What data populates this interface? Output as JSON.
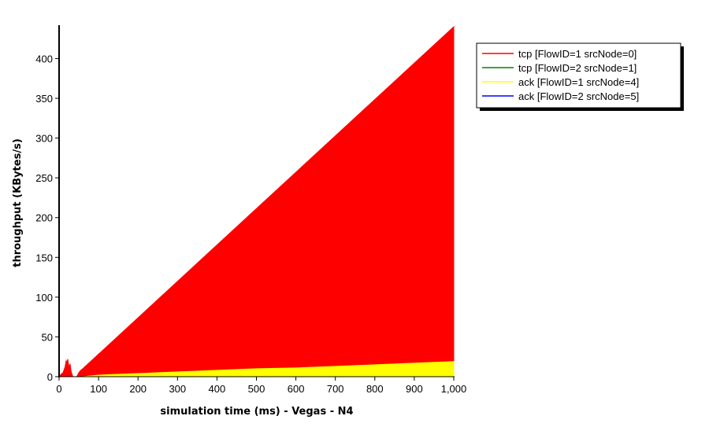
{
  "chart_data": {
    "type": "area",
    "xlabel": "simulation time (ms) - Vegas - N4",
    "ylabel": "throughput (KBytes/s)",
    "xlim": [
      0,
      1000
    ],
    "ylim": [
      0,
      440
    ],
    "x_ticks": [
      0,
      100,
      200,
      300,
      400,
      500,
      600,
      700,
      800,
      900,
      1000
    ],
    "x_tick_labels": [
      "0",
      "100",
      "200",
      "300",
      "400",
      "500",
      "600",
      "700",
      "800",
      "900",
      "1,000"
    ],
    "y_ticks": [
      0,
      50,
      100,
      150,
      200,
      250,
      300,
      350,
      400
    ],
    "y_tick_labels": [
      "0",
      "50",
      "100",
      "150",
      "200",
      "250",
      "300",
      "350",
      "400"
    ],
    "grid": false,
    "legend_position": "top-right",
    "series": [
      {
        "name": "tcp [FlowID=1 srcNode=0]",
        "color": "#ff0000",
        "x": [
          0,
          5,
          10,
          15,
          18,
          20,
          22,
          25,
          28,
          30,
          32,
          35,
          40,
          45,
          50,
          55,
          60,
          1000
        ],
        "y": [
          0,
          3,
          5,
          12,
          20,
          18,
          22,
          12,
          16,
          8,
          4,
          0,
          0,
          0,
          5,
          8,
          10,
          445
        ]
      },
      {
        "name": "tcp [FlowID=2 srcNode=1]",
        "color": "#008000",
        "x": [
          0,
          1000
        ],
        "y": [
          0,
          0
        ]
      },
      {
        "name": "ack [FlowID=1 srcNode=4]",
        "color": "#ffff00",
        "x": [
          0,
          60,
          100,
          200,
          300,
          400,
          500,
          600,
          700,
          800,
          900,
          1000
        ],
        "y": [
          0,
          0,
          2,
          4,
          6,
          8,
          10,
          11,
          13,
          15,
          17,
          19
        ]
      },
      {
        "name": "ack [FlowID=2 srcNode=5]",
        "color": "#0000ff",
        "x": [
          0,
          1000
        ],
        "y": [
          0,
          0
        ]
      }
    ]
  }
}
